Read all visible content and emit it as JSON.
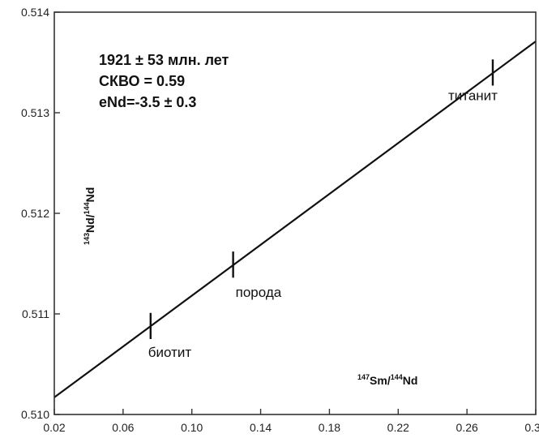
{
  "chart_data": {
    "type": "scatter",
    "title": "",
    "xlabel": {
      "sup1": "147",
      "mid": "Sm/",
      "sup2": "144",
      "end": "Nd"
    },
    "ylabel": {
      "sup1": "143",
      "mid": "Nd/",
      "sup2": "144",
      "end": "Nd"
    },
    "xlim": [
      0.02,
      0.3
    ],
    "ylim": [
      0.51,
      0.514
    ],
    "x_ticks": [
      0.02,
      0.06,
      0.1,
      0.14,
      0.18,
      0.22,
      0.26,
      0.3
    ],
    "x_tick_labels": [
      "0.02",
      "0.06",
      "0.10",
      "0.14",
      "0.18",
      "0.22",
      "0.26",
      "0.30"
    ],
    "y_ticks": [
      0.51,
      0.511,
      0.512,
      0.513,
      0.514
    ],
    "y_tick_labels": [
      "0.510",
      "0.511",
      "0.512",
      "0.513",
      "0.514"
    ],
    "grid": false,
    "annotations": [
      "1921 ± 53 млн. лет",
      "СКВО = 0.59",
      "eNd=-3.5 ± 0.3"
    ],
    "points": [
      {
        "label": "биотит",
        "x": 0.076,
        "y": 0.51088,
        "yerr": 0.00013
      },
      {
        "label": "порода",
        "x": 0.124,
        "y": 0.51149,
        "yerr": 0.00013
      },
      {
        "label": "титанит",
        "x": 0.275,
        "y": 0.5134,
        "yerr": 0.00013
      }
    ],
    "isochron": {
      "x": [
        0.02,
        0.3
      ],
      "y": [
        0.51017,
        0.51371
      ]
    },
    "colors": {
      "line": "#111111",
      "axis": "#333333",
      "text": "#111111"
    }
  }
}
